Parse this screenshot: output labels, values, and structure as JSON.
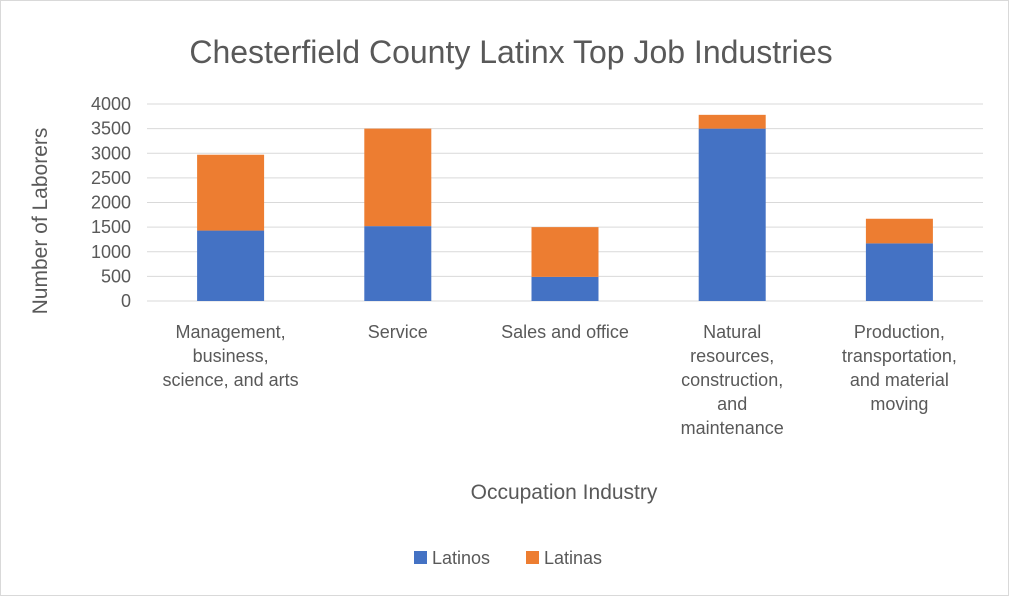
{
  "chart_data": {
    "type": "bar",
    "stacked": true,
    "title": "Chesterfield County Latinx Top Job Industries",
    "xlabel": "Occupation Industry",
    "ylabel": "Number of Laborers",
    "ylim": [
      0,
      4000
    ],
    "y_ticks": [
      "0",
      "500",
      "1000",
      "1500",
      "2000",
      "2500",
      "3000",
      "3500",
      "4000"
    ],
    "grid": true,
    "legend_position": "bottom",
    "categories": [
      [
        "Management,",
        "business,",
        "science, and arts"
      ],
      [
        "Service"
      ],
      [
        "Sales and office"
      ],
      [
        "Natural",
        "resources,",
        "construction,",
        "and",
        "maintenance"
      ],
      [
        "Production,",
        "transportation,",
        "and material",
        "moving"
      ]
    ],
    "series": [
      {
        "name": "Latinos",
        "color": "#4472c4",
        "values": [
          1430,
          1520,
          490,
          3500,
          1170
        ]
      },
      {
        "name": "Latinas",
        "color": "#ed7d31",
        "values": [
          1540,
          1980,
          1010,
          280,
          500
        ]
      }
    ]
  }
}
